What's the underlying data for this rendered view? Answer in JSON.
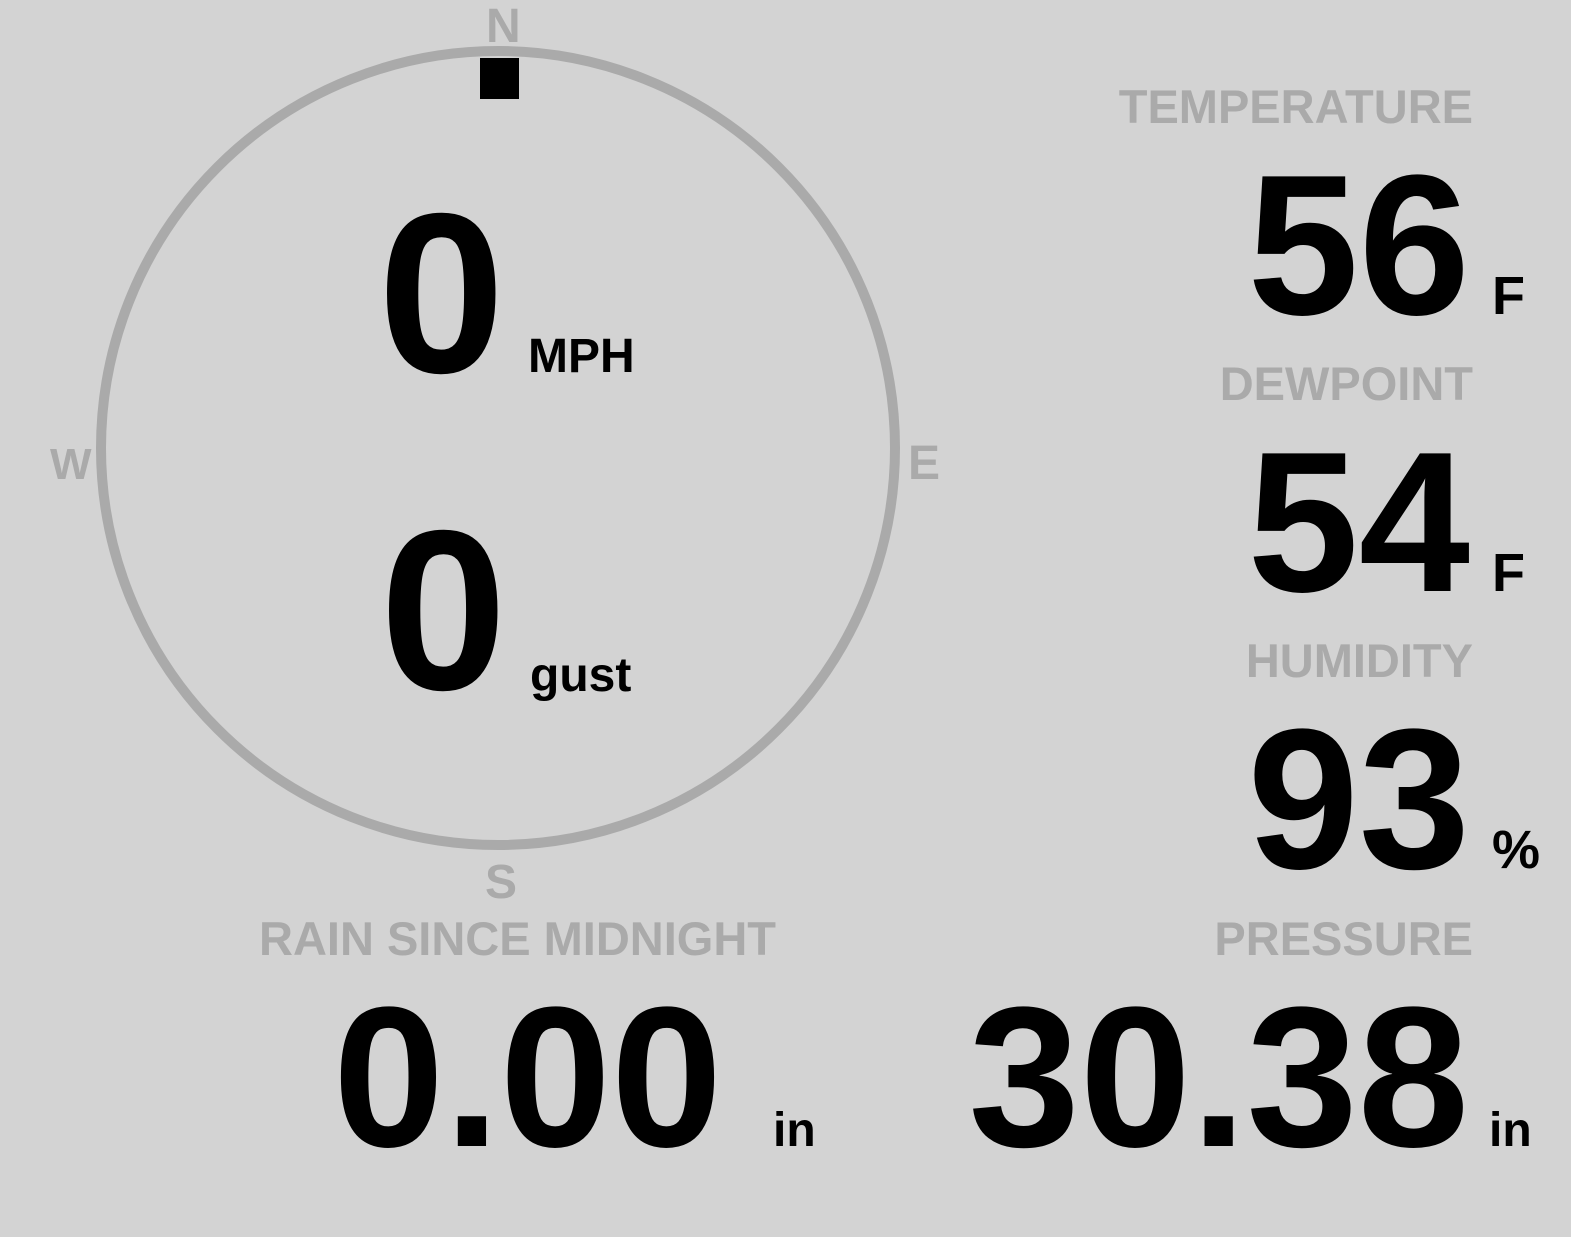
{
  "colors": {
    "background": "#d3d3d3",
    "label": "#aaaaaa",
    "value": "#000000",
    "compass_ring": "#aaaaaa",
    "direction_marker": "#000000"
  },
  "wind": {
    "compass": {
      "north": "N",
      "south": "S",
      "east": "E",
      "west": "W"
    },
    "direction_degrees": 0,
    "speed": "0",
    "speed_unit": "MPH",
    "gust": "0",
    "gust_unit": "gust"
  },
  "temperature": {
    "label": "TEMPERATURE",
    "value": "56",
    "unit": "F"
  },
  "dewpoint": {
    "label": "DEWPOINT",
    "value": "54",
    "unit": "F"
  },
  "humidity": {
    "label": "HUMIDITY",
    "value": "93",
    "unit": "%"
  },
  "rain": {
    "label": "RAIN SINCE MIDNIGHT",
    "value": "0.00",
    "unit": "in"
  },
  "pressure": {
    "label": "PRESSURE",
    "value": "30.38",
    "unit": "in"
  }
}
